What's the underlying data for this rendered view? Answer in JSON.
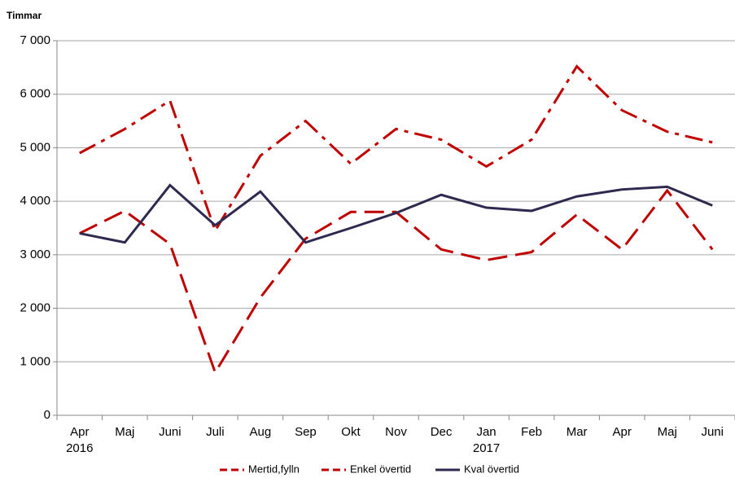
{
  "chart_data": {
    "type": "line",
    "y_axis_label": "Timmar",
    "categories": [
      "Apr",
      "Maj",
      "Juni",
      "Juli",
      "Aug",
      "Sep",
      "Okt",
      "Nov",
      "Dec",
      "Jan",
      "Feb",
      "Mar",
      "Apr",
      "Maj",
      "Juni"
    ],
    "category_years": [
      "2016",
      null,
      null,
      null,
      null,
      null,
      null,
      null,
      null,
      "2017",
      null,
      null,
      null,
      null,
      null
    ],
    "series": [
      {
        "name": "Mertid,fylln",
        "color": "#c00000",
        "dash": "dash-dot",
        "values": [
          4900,
          5350,
          5880,
          3450,
          4850,
          5500,
          4700,
          5350,
          5150,
          4650,
          5150,
          6520,
          5700,
          5300,
          5100
        ]
      },
      {
        "name": "Enkel övertid",
        "color": "#c00000",
        "dash": "long-dash",
        "values": [
          3400,
          3820,
          3200,
          800,
          2200,
          3300,
          3800,
          3800,
          3100,
          2900,
          3050,
          3750,
          3100,
          4200,
          3100
        ]
      },
      {
        "name": "Kval övertid",
        "color": "#2e2a4f",
        "dash": "solid",
        "values": [
          3400,
          3230,
          4300,
          3550,
          4180,
          3230,
          3500,
          3780,
          4120,
          3880,
          3820,
          4090,
          4220,
          4270,
          3920
        ]
      }
    ],
    "ylim": [
      0,
      7000
    ],
    "yticks": [
      0,
      {
        "value": 1000,
        "label": "1 000"
      },
      {
        "value": 2000,
        "label": "2 000"
      },
      {
        "value": 3000,
        "label": "3 000"
      },
      {
        "value": 4000,
        "label": "4 000"
      },
      {
        "value": 5000,
        "label": "5 000"
      },
      {
        "value": 6000,
        "label": "6 000"
      },
      {
        "value": 7000,
        "label": "7 000"
      }
    ],
    "grid": true,
    "legend": "bottom"
  }
}
